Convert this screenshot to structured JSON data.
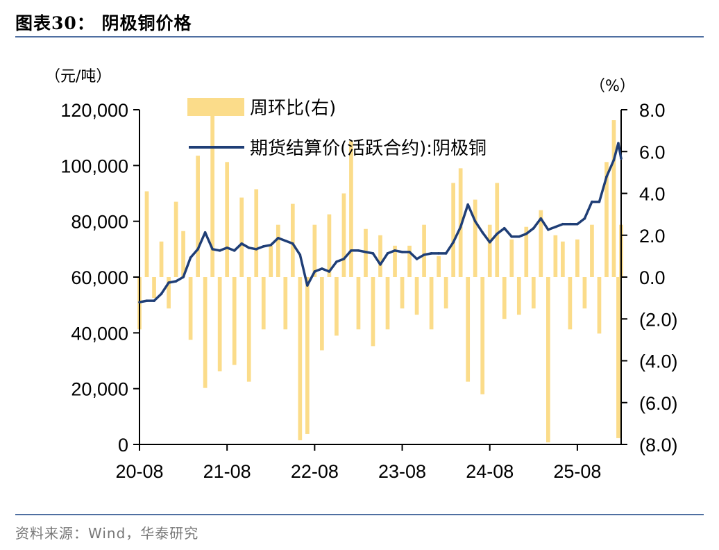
{
  "figure": {
    "title": "图表30：  阴极铜价格",
    "source": "资料来源：Wind，华泰研究"
  },
  "colors": {
    "bar": "#fbdc8a",
    "line": "#1f3e76",
    "rule": "#4f6fa1"
  },
  "chart_data": {
    "type": "bar+line",
    "left_axis": {
      "unit": "（元/吨）",
      "range": [
        0,
        120000
      ],
      "ticks": [
        "0",
        "20,000",
        "40,000",
        "60,000",
        "80,000",
        "100,000",
        "120,000"
      ],
      "tick_values": [
        0,
        20000,
        40000,
        60000,
        80000,
        100000,
        120000
      ]
    },
    "right_axis": {
      "unit": "（%）",
      "range": [
        -8,
        8
      ],
      "ticks": [
        "(8.0)",
        "(6.0)",
        "(4.0)",
        "(2.0)",
        "0.0",
        "2.0",
        "4.0",
        "6.0",
        "8.0"
      ],
      "tick_values": [
        -8,
        -6,
        -4,
        -2,
        0,
        2,
        4,
        6,
        8
      ]
    },
    "x_axis": {
      "range": [
        "2020-08",
        "2026-02"
      ],
      "ticks": [
        "20-08",
        "21-08",
        "22-08",
        "23-08",
        "24-08",
        "25-08"
      ],
      "tick_dates": [
        "2020-08",
        "2021-08",
        "2022-08",
        "2023-08",
        "2024-08",
        "2025-08"
      ]
    },
    "legend": {
      "placement": "top-left",
      "entries": [
        "周环比(右)",
        "期货结算价(活跃合约):阴极铜"
      ]
    },
    "series": [
      {
        "name": "期货结算价(活跃合约):阴极铜",
        "type": "line",
        "axis": "left",
        "points": [
          [
            "2020-08",
            51000
          ],
          [
            "2020-09",
            51500
          ],
          [
            "2020-10",
            51500
          ],
          [
            "2020-11",
            54000
          ],
          [
            "2020-12",
            58000
          ],
          [
            "2021-01",
            58500
          ],
          [
            "2021-02",
            60000
          ],
          [
            "2021-03",
            67000
          ],
          [
            "2021-04",
            70000
          ],
          [
            "2021-05",
            76000
          ],
          [
            "2021-06",
            70000
          ],
          [
            "2021-07",
            69500
          ],
          [
            "2021-08",
            70500
          ],
          [
            "2021-09",
            69500
          ],
          [
            "2021-10",
            72000
          ],
          [
            "2021-11",
            70500
          ],
          [
            "2021-12",
            70000
          ],
          [
            "2022-01",
            71000
          ],
          [
            "2022-02",
            71500
          ],
          [
            "2022-03",
            74000
          ],
          [
            "2022-04",
            73000
          ],
          [
            "2022-05",
            72000
          ],
          [
            "2022-06",
            68000
          ],
          [
            "2022-07",
            57000
          ],
          [
            "2022-08",
            62000
          ],
          [
            "2022-09",
            63000
          ],
          [
            "2022-10",
            62000
          ],
          [
            "2022-11",
            65500
          ],
          [
            "2022-12",
            66500
          ],
          [
            "2023-01",
            69500
          ],
          [
            "2023-02",
            69500
          ],
          [
            "2023-03",
            69000
          ],
          [
            "2023-04",
            68500
          ],
          [
            "2023-05",
            64500
          ],
          [
            "2023-06",
            68500
          ],
          [
            "2023-07",
            69500
          ],
          [
            "2023-08",
            69000
          ],
          [
            "2023-09",
            69000
          ],
          [
            "2023-10",
            66500
          ],
          [
            "2023-11",
            68000
          ],
          [
            "2023-12",
            68500
          ],
          [
            "2024-01",
            68500
          ],
          [
            "2024-02",
            68500
          ],
          [
            "2024-03",
            72500
          ],
          [
            "2024-04",
            78000
          ],
          [
            "2024-05",
            86000
          ],
          [
            "2024-06",
            80000
          ],
          [
            "2024-07",
            76000
          ],
          [
            "2024-08",
            72500
          ],
          [
            "2024-09",
            75500
          ],
          [
            "2024-10",
            77500
          ],
          [
            "2024-11",
            74500
          ],
          [
            "2024-12",
            74500
          ],
          [
            "2025-01",
            75500
          ],
          [
            "2025-02",
            77500
          ],
          [
            "2025-03",
            81000
          ],
          [
            "2025-04",
            77000
          ],
          [
            "2025-05",
            78000
          ],
          [
            "2025-06",
            79000
          ],
          [
            "2025-07",
            79000
          ],
          [
            "2025-08",
            79000
          ],
          [
            "2025-09",
            81000
          ],
          [
            "2025-10",
            87000
          ],
          [
            "2025-11",
            87000
          ],
          [
            "2025-12",
            96000
          ],
          [
            "2026-01",
            102000
          ],
          [
            "2026-01-20",
            108000
          ],
          [
            "2026-02",
            102500
          ]
        ]
      },
      {
        "name": "周环比(右)",
        "type": "bar",
        "axis": "right",
        "points": [
          [
            "2020-08",
            -2.5
          ],
          [
            "2020-09",
            4.1
          ],
          [
            "2020-10",
            -1.0
          ],
          [
            "2020-11",
            1.7
          ],
          [
            "2020-12",
            -1.5
          ],
          [
            "2021-01",
            3.6
          ],
          [
            "2021-02",
            2.2
          ],
          [
            "2021-03",
            -3.0
          ],
          [
            "2021-04",
            5.8
          ],
          [
            "2021-05",
            -5.3
          ],
          [
            "2021-06",
            8.0
          ],
          [
            "2021-07",
            -4.5
          ],
          [
            "2021-08",
            5.5
          ],
          [
            "2021-09",
            -4.2
          ],
          [
            "2021-10",
            3.8
          ],
          [
            "2021-11",
            -5.0
          ],
          [
            "2021-12",
            4.2
          ],
          [
            "2022-01",
            -2.5
          ],
          [
            "2022-02",
            1.5
          ],
          [
            "2022-03",
            2.5
          ],
          [
            "2022-04",
            -2.5
          ],
          [
            "2022-05",
            3.5
          ],
          [
            "2022-06",
            -7.8
          ],
          [
            "2022-07",
            -7.5
          ],
          [
            "2022-08",
            2.5
          ],
          [
            "2022-09",
            -3.5
          ],
          [
            "2022-10",
            3.0
          ],
          [
            "2022-11",
            -2.8
          ],
          [
            "2022-12",
            4.0
          ],
          [
            "2023-01",
            6.5
          ],
          [
            "2023-02",
            -2.5
          ],
          [
            "2023-03",
            2.3
          ],
          [
            "2023-04",
            -3.3
          ],
          [
            "2023-05",
            2.0
          ],
          [
            "2023-06",
            -2.5
          ],
          [
            "2023-07",
            1.5
          ],
          [
            "2023-08",
            -1.5
          ],
          [
            "2023-09",
            1.5
          ],
          [
            "2023-10",
            -1.8
          ],
          [
            "2023-11",
            2.5
          ],
          [
            "2023-12",
            -2.5
          ],
          [
            "2024-01",
            1.0
          ],
          [
            "2024-02",
            -1.5
          ],
          [
            "2024-03",
            4.5
          ],
          [
            "2024-04",
            5.2
          ],
          [
            "2024-05",
            -5.0
          ],
          [
            "2024-06",
            3.7
          ],
          [
            "2024-07",
            -5.6
          ],
          [
            "2024-08",
            2.5
          ],
          [
            "2024-09",
            4.5
          ],
          [
            "2024-10",
            -2.0
          ],
          [
            "2024-11",
            1.8
          ],
          [
            "2024-12",
            -1.8
          ],
          [
            "2025-01",
            2.4
          ],
          [
            "2025-02",
            -1.5
          ],
          [
            "2025-03",
            3.2
          ],
          [
            "2025-04",
            -7.9
          ],
          [
            "2025-05",
            2.0
          ],
          [
            "2025-06",
            1.7
          ],
          [
            "2025-07",
            -2.5
          ],
          [
            "2025-08",
            1.8
          ],
          [
            "2025-09",
            -1.5
          ],
          [
            "2025-10",
            2.5
          ],
          [
            "2025-11",
            -2.7
          ],
          [
            "2025-12",
            5.5
          ],
          [
            "2026-01",
            7.5
          ],
          [
            "2026-01-20",
            -7.7
          ],
          [
            "2026-02",
            2.5
          ]
        ]
      }
    ]
  }
}
